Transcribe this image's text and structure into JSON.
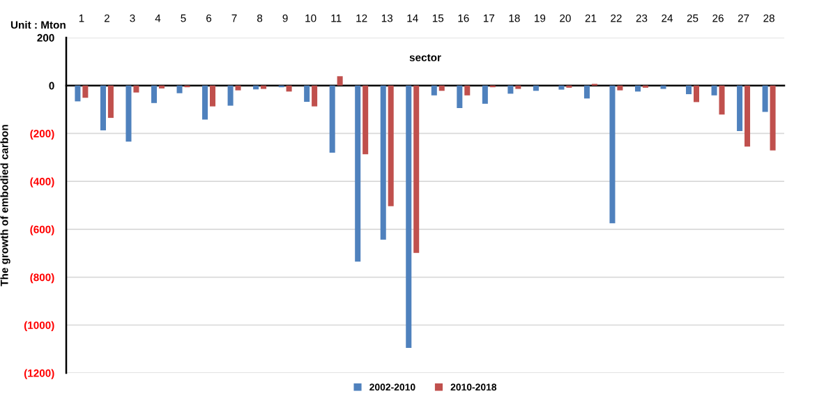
{
  "chart_data": {
    "type": "bar",
    "xlabel": "sector",
    "ylabel": "The growth of embodied carbon",
    "annotations": [
      "Unit : Mton"
    ],
    "categories": [
      "1",
      "2",
      "3",
      "4",
      "5",
      "6",
      "7",
      "8",
      "9",
      "10",
      "11",
      "12",
      "13",
      "14",
      "15",
      "16",
      "17",
      "18",
      "19",
      "20",
      "21",
      "22",
      "23",
      "24",
      "25",
      "26",
      "27",
      "28"
    ],
    "series": [
      {
        "name": "2002-2010",
        "color": "#4f81bd",
        "values": [
          -66,
          -187,
          -234,
          -73,
          -32,
          -142,
          -84,
          -16,
          -7,
          -68,
          -280,
          -735,
          -643,
          -1095,
          -41,
          -94,
          -76,
          -34,
          -22,
          -17,
          -54,
          -575,
          -25,
          -14,
          -36,
          -41,
          -190,
          -110
        ]
      },
      {
        "name": "2010-2018",
        "color": "#c0504d",
        "values": [
          -51,
          -135,
          -29,
          -12,
          -7,
          -87,
          -20,
          -14,
          -25,
          -87,
          39,
          -287,
          -504,
          -699,
          -22,
          -41,
          -7,
          -14,
          0,
          -9,
          7,
          -20,
          -9,
          0,
          -69,
          -121,
          -255,
          -271
        ]
      }
    ],
    "ylim": [
      -1200,
      200
    ],
    "yticks": [
      200,
      0,
      {
        "value": -200,
        "label": "(200)"
      },
      {
        "value": -400,
        "label": "(400)"
      },
      {
        "value": -600,
        "label": "(600)"
      },
      {
        "value": -800,
        "label": "(800)"
      },
      {
        "value": -1000,
        "label": "(1000)"
      },
      {
        "value": -1200,
        "label": "(1200)"
      }
    ],
    "grid": "y",
    "legend": "bottom"
  }
}
